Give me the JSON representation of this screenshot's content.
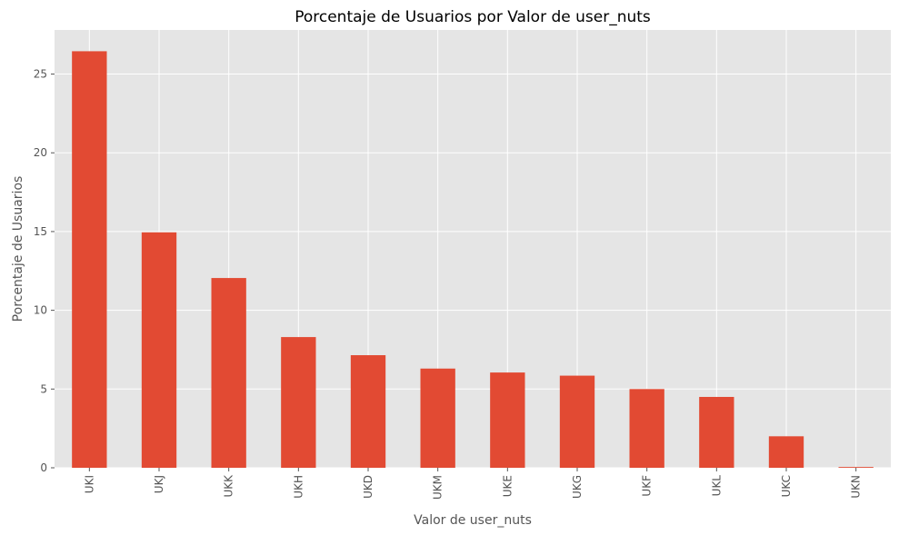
{
  "chart_data": {
    "type": "bar",
    "title": "Porcentaje de Usuarios por Valor de user_nuts",
    "xlabel": "Valor de user_nuts",
    "ylabel": "Porcentaje de Usuarios",
    "categories": [
      "UKI",
      "UKJ",
      "UKK",
      "UKH",
      "UKD",
      "UKM",
      "UKE",
      "UKG",
      "UKF",
      "UKL",
      "UKC",
      "UKN"
    ],
    "values": [
      26.45,
      14.95,
      12.05,
      8.3,
      7.15,
      6.3,
      6.05,
      5.85,
      5.0,
      4.5,
      2.0,
      0.05
    ],
    "ylim": [
      0,
      27.8
    ],
    "yticks": [
      0,
      5,
      10,
      15,
      20,
      25
    ],
    "grid": true,
    "colors": {
      "bar": "#E24A33",
      "background": "#E5E5E5",
      "grid": "#FFFFFF"
    }
  }
}
